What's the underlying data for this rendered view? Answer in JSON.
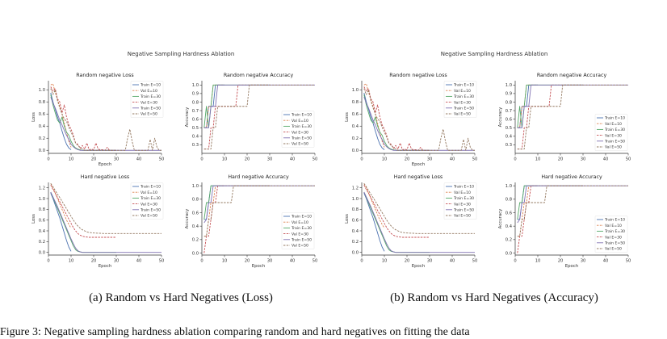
{
  "page": {
    "bottom_text": "Figure 3: Negative sampling hardness ablation comparing random and hard negatives on fitting the data"
  },
  "figures": [
    {
      "id": "fig-a",
      "suptitle": "Negative Sampling Hardness Ablation",
      "caption": "(a) Random vs Hard Negatives (Loss)",
      "legend_layout": "default"
    },
    {
      "id": "fig-b",
      "suptitle": "Negative Sampling Hardness Ablation",
      "caption": "(b) Random vs Hard Negatives (Accuracy)",
      "legend_layout": "lower"
    }
  ],
  "colors": {
    "E10": "#4c72b0",
    "E30": "#55a868",
    "E50": "#8172b2",
    "val10": "#dd8452",
    "val30": "#c44e52",
    "val50": "#937860",
    "axis": "#333333"
  },
  "chart_data": [
    {
      "type": "line",
      "title": "Random negative Loss",
      "xlabel": "Epoch",
      "ylabel": "Loss",
      "xlim": [
        0,
        50
      ],
      "ylim": [
        -0.05,
        1.15
      ],
      "xticks": [
        0,
        10,
        20,
        30,
        40,
        50
      ],
      "yticks": [
        0.0,
        0.2,
        0.4,
        0.6,
        0.8,
        1.0
      ],
      "ytick_decimals": 1,
      "legend": "top-right",
      "series": [
        {
          "name": "Train E=10",
          "color": "#4c72b0",
          "dash": false,
          "x": [
            1,
            2,
            3,
            4,
            5,
            6,
            7,
            8,
            9,
            10
          ],
          "y": [
            0.95,
            0.8,
            0.68,
            0.55,
            0.45,
            0.32,
            0.2,
            0.1,
            0.04,
            0.01
          ]
        },
        {
          "name": "Val E=10",
          "color": "#dd8452",
          "dash": true,
          "x": [
            1,
            2,
            3,
            4,
            5,
            6,
            7,
            8,
            9,
            10
          ],
          "y": [
            1.08,
            1.1,
            0.95,
            0.85,
            0.72,
            0.6,
            0.45,
            0.3,
            0.15,
            0.05
          ]
        },
        {
          "name": "Train E=30",
          "color": "#55a868",
          "dash": false,
          "x": [
            1,
            2,
            3,
            4,
            5,
            6,
            7,
            8,
            9,
            10,
            11,
            12,
            13,
            14,
            15,
            16,
            17,
            18,
            19,
            20,
            21,
            22,
            23,
            24,
            25,
            26,
            27,
            28,
            29,
            30
          ],
          "y": [
            0.92,
            0.75,
            0.62,
            0.5,
            0.45,
            0.55,
            0.4,
            0.3,
            0.25,
            0.15,
            0.08,
            0.04,
            0.02,
            0.01,
            0,
            0,
            0,
            0,
            0,
            0,
            0,
            0,
            0,
            0,
            0,
            0,
            0,
            0,
            0,
            0
          ]
        },
        {
          "name": "Val E=30",
          "color": "#c44e52",
          "dash": true,
          "x": [
            1,
            2,
            3,
            4,
            5,
            6,
            7,
            8,
            9,
            10,
            11,
            12,
            13,
            14,
            15,
            16,
            17,
            18,
            19,
            20,
            21,
            22,
            23,
            24,
            25,
            26,
            27,
            28,
            29,
            30
          ],
          "y": [
            1.05,
            0.98,
            1.02,
            0.85,
            0.8,
            0.62,
            0.75,
            0.55,
            0.42,
            0.35,
            0.25,
            0.12,
            0.1,
            0.03,
            0.08,
            0.02,
            0.12,
            0.01,
            0.02,
            0.01,
            0.12,
            0.02,
            0.01,
            0.01,
            0,
            0.05,
            0,
            0,
            0,
            0
          ]
        },
        {
          "name": "Train E=50",
          "color": "#8172b2",
          "dash": false,
          "x": [
            1,
            2,
            3,
            4,
            5,
            6,
            7,
            8,
            9,
            10,
            11,
            12,
            13,
            14,
            15,
            16,
            17,
            18,
            19,
            20,
            25,
            30,
            35,
            40,
            45,
            50
          ],
          "y": [
            0.88,
            0.78,
            0.7,
            0.6,
            0.5,
            0.42,
            0.33,
            0.25,
            0.18,
            0.1,
            0.06,
            0.03,
            0.01,
            0,
            0,
            0,
            0,
            0,
            0,
            0,
            0,
            0,
            0,
            0,
            0,
            0
          ]
        },
        {
          "name": "Val E=50",
          "color": "#937860",
          "dash": true,
          "x": [
            1,
            2,
            3,
            4,
            5,
            6,
            7,
            8,
            9,
            10,
            11,
            12,
            13,
            14,
            15,
            16,
            17,
            18,
            19,
            20,
            25,
            30,
            34,
            35,
            36,
            37,
            38,
            40,
            44,
            45,
            46,
            47,
            48,
            49,
            50
          ],
          "y": [
            1.02,
            0.92,
            1.0,
            0.82,
            0.7,
            0.6,
            0.52,
            0.48,
            0.38,
            0.3,
            0.22,
            0.12,
            0.08,
            0.05,
            0.02,
            0,
            0,
            0,
            0,
            0,
            0,
            0,
            0,
            0.2,
            0.35,
            0.15,
            0,
            0,
            0,
            0.18,
            0,
            0.2,
            0.05,
            0,
            0
          ]
        }
      ]
    },
    {
      "type": "line",
      "title": "Random negative Accuracy",
      "xlabel": "",
      "ylabel": "Accuracy",
      "xlim": [
        0,
        50
      ],
      "ylim": [
        0.2,
        1.05
      ],
      "xticks": [
        0,
        10,
        20,
        30,
        40,
        50
      ],
      "yticks": [
        0.3,
        0.4,
        0.5,
        0.6,
        0.7,
        0.8,
        0.9,
        1.0
      ],
      "ytick_decimals": 1,
      "legend": "right",
      "series": [
        {
          "name": "Train E=10",
          "color": "#4c72b0",
          "dash": false,
          "x": [
            1,
            2,
            3,
            4,
            5,
            6,
            7,
            8,
            9,
            10
          ],
          "y": [
            0.5,
            0.5,
            0.75,
            0.75,
            0.75,
            1,
            1,
            1,
            1,
            1
          ]
        },
        {
          "name": "Val E=10",
          "color": "#dd8452",
          "dash": true,
          "x": [
            1,
            2,
            3,
            4,
            5,
            6,
            7,
            8,
            9,
            10
          ],
          "y": [
            0.5,
            0.5,
            0.75,
            0.75,
            1,
            1,
            1,
            1,
            1,
            1
          ]
        },
        {
          "name": "Train E=30",
          "color": "#55a868",
          "dash": false,
          "x": [
            1,
            2,
            3,
            4,
            5,
            6,
            7,
            8,
            9,
            10,
            20,
            30
          ],
          "y": [
            0.5,
            0.75,
            0.5,
            0.75,
            1,
            1,
            1,
            1,
            1,
            1,
            1,
            1
          ]
        },
        {
          "name": "Val E=30",
          "color": "#c44e52",
          "dash": true,
          "x": [
            1,
            2,
            3,
            4,
            5,
            6,
            7,
            8,
            9,
            10,
            15,
            16,
            20,
            30
          ],
          "y": [
            0.25,
            0.25,
            0.25,
            0.5,
            0.5,
            0.75,
            0.75,
            0.75,
            0.75,
            0.75,
            0.75,
            1,
            1,
            1
          ]
        },
        {
          "name": "Train E=50",
          "color": "#8172b2",
          "dash": false,
          "x": [
            1,
            2,
            3,
            4,
            5,
            6,
            7,
            8,
            9,
            10,
            20,
            30,
            40,
            50
          ],
          "y": [
            0.5,
            0.5,
            0.5,
            0.75,
            0.75,
            0.75,
            1,
            1,
            1,
            1,
            1,
            1,
            1,
            1
          ]
        },
        {
          "name": "Val E=50",
          "color": "#937860",
          "dash": true,
          "x": [
            1,
            2,
            3,
            4,
            5,
            6,
            7,
            8,
            9,
            10,
            15,
            20,
            21,
            22,
            30,
            40,
            50
          ],
          "y": [
            0.25,
            0.25,
            0.25,
            0.25,
            0.5,
            0.5,
            0.75,
            0.75,
            0.75,
            0.75,
            0.75,
            0.75,
            1,
            1,
            1,
            1,
            1
          ]
        }
      ]
    },
    {
      "type": "line",
      "title": "Hard negative Loss",
      "xlabel": "Epoch",
      "ylabel": "Loss",
      "xlim": [
        0,
        50
      ],
      "ylim": [
        -0.05,
        1.3
      ],
      "xticks": [
        0,
        10,
        20,
        30,
        40,
        50
      ],
      "yticks": [
        0.0,
        0.2,
        0.4,
        0.6,
        0.8,
        1.0,
        1.2
      ],
      "ytick_decimals": 1,
      "legend": "top-right",
      "series": [
        {
          "name": "Train E=10",
          "color": "#4c72b0",
          "dash": false,
          "x": [
            1,
            2,
            3,
            4,
            5,
            6,
            7,
            8,
            9,
            10
          ],
          "y": [
            1.1,
            1.0,
            0.88,
            0.76,
            0.64,
            0.5,
            0.36,
            0.22,
            0.1,
            0.02
          ]
        },
        {
          "name": "Val E=10",
          "color": "#dd8452",
          "dash": true,
          "x": [
            1,
            2,
            3,
            4,
            5,
            6,
            7,
            8,
            9,
            10
          ],
          "y": [
            1.28,
            1.2,
            1.1,
            1.0,
            0.9,
            0.8,
            0.7,
            0.6,
            0.52,
            0.45
          ]
        },
        {
          "name": "Train E=30",
          "color": "#55a868",
          "dash": false,
          "x": [
            1,
            2,
            3,
            4,
            5,
            6,
            7,
            8,
            9,
            10,
            11,
            12,
            13,
            14,
            15,
            16,
            18,
            20,
            25,
            30
          ],
          "y": [
            1.12,
            1.02,
            0.92,
            0.82,
            0.72,
            0.62,
            0.52,
            0.42,
            0.32,
            0.22,
            0.12,
            0.05,
            0.02,
            0.01,
            0,
            0,
            0,
            0,
            0,
            0
          ]
        },
        {
          "name": "Val E=30",
          "color": "#c44e52",
          "dash": true,
          "x": [
            1,
            2,
            3,
            4,
            5,
            6,
            7,
            8,
            9,
            10,
            11,
            12,
            13,
            14,
            15,
            16,
            18,
            20,
            25,
            30
          ],
          "y": [
            1.25,
            1.17,
            1.1,
            1.02,
            0.94,
            0.86,
            0.78,
            0.7,
            0.62,
            0.54,
            0.46,
            0.4,
            0.35,
            0.32,
            0.3,
            0.29,
            0.28,
            0.28,
            0.28,
            0.28
          ]
        },
        {
          "name": "Train E=50",
          "color": "#8172b2",
          "dash": false,
          "x": [
            1,
            2,
            3,
            4,
            5,
            6,
            7,
            8,
            9,
            10,
            11,
            12,
            13,
            14,
            15,
            16,
            18,
            20,
            30,
            40,
            50
          ],
          "y": [
            1.12,
            1.03,
            0.94,
            0.85,
            0.75,
            0.65,
            0.55,
            0.45,
            0.35,
            0.25,
            0.16,
            0.08,
            0.03,
            0.01,
            0,
            0,
            0,
            0,
            0,
            0,
            0
          ]
        },
        {
          "name": "Val E=50",
          "color": "#937860",
          "dash": true,
          "x": [
            1,
            2,
            3,
            4,
            5,
            6,
            7,
            8,
            9,
            10,
            11,
            12,
            13,
            14,
            15,
            16,
            17,
            18,
            20,
            25,
            30,
            40,
            50
          ],
          "y": [
            1.28,
            1.22,
            1.15,
            1.08,
            1.02,
            0.95,
            0.88,
            0.81,
            0.74,
            0.67,
            0.6,
            0.54,
            0.49,
            0.45,
            0.42,
            0.4,
            0.38,
            0.37,
            0.36,
            0.35,
            0.35,
            0.35,
            0.35
          ]
        }
      ]
    },
    {
      "type": "line",
      "title": "Hard negative Accuracy",
      "xlabel": "Epoch",
      "ylabel": "Accuracy",
      "xlim": [
        0,
        50
      ],
      "ylim": [
        -0.03,
        1.05
      ],
      "xticks": [
        0,
        10,
        20,
        30,
        40,
        50
      ],
      "yticks": [
        0.0,
        0.2,
        0.4,
        0.6,
        0.8,
        1.0
      ],
      "ytick_decimals": 1,
      "legend": "right",
      "series": [
        {
          "name": "Train E=10",
          "color": "#4c72b0",
          "dash": false,
          "x": [
            1,
            2,
            3,
            4,
            5,
            6,
            7,
            8,
            9,
            10
          ],
          "y": [
            0.5,
            0.5,
            0.75,
            1,
            1,
            1,
            1,
            1,
            1,
            1
          ]
        },
        {
          "name": "Val E=10",
          "color": "#dd8452",
          "dash": true,
          "x": [
            1,
            2,
            3,
            4,
            5,
            6,
            7,
            8,
            9,
            10
          ],
          "y": [
            0.25,
            0.25,
            0.5,
            0.75,
            0.75,
            1,
            1,
            1,
            1,
            1
          ]
        },
        {
          "name": "Train E=30",
          "color": "#55a868",
          "dash": false,
          "x": [
            1,
            2,
            3,
            4,
            5,
            6,
            7,
            8,
            9,
            10,
            20,
            30
          ],
          "y": [
            0.5,
            0.75,
            0.75,
            1,
            1,
            1,
            1,
            1,
            1,
            1,
            1,
            1
          ]
        },
        {
          "name": "Val E=30",
          "color": "#c44e52",
          "dash": true,
          "x": [
            1,
            2,
            3,
            4,
            5,
            6,
            7,
            8,
            9,
            10,
            20,
            30
          ],
          "y": [
            0,
            0.25,
            0.25,
            0.5,
            0.75,
            0.75,
            1,
            1,
            1,
            1,
            1,
            1
          ]
        },
        {
          "name": "Train E=50",
          "color": "#8172b2",
          "dash": false,
          "x": [
            1,
            2,
            3,
            4,
            5,
            6,
            7,
            8,
            9,
            10,
            20,
            30,
            40,
            50
          ],
          "y": [
            0.45,
            0.5,
            0.75,
            0.75,
            1,
            1,
            1,
            1,
            1,
            1,
            1,
            1,
            1,
            1
          ]
        },
        {
          "name": "Val E=50",
          "color": "#937860",
          "dash": true,
          "x": [
            1,
            2,
            3,
            4,
            5,
            6,
            7,
            8,
            9,
            10,
            11,
            12,
            13,
            14,
            15,
            20,
            30,
            40,
            50
          ],
          "y": [
            0.25,
            0.25,
            0.5,
            0.5,
            0.75,
            0.75,
            0.75,
            0.75,
            0.75,
            0.75,
            0.75,
            0.75,
            0.75,
            1,
            1,
            1,
            1,
            1,
            1
          ]
        }
      ]
    }
  ]
}
